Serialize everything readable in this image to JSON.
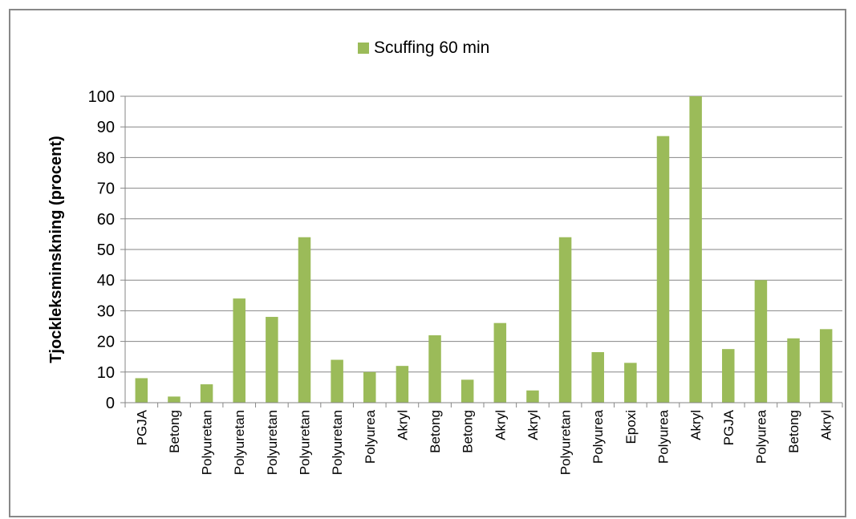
{
  "chart_data": {
    "type": "bar",
    "title": "",
    "xlabel": "",
    "ylabel": "Tjockleksminskning (procent)",
    "ylim": [
      0,
      100
    ],
    "ytick_step": 10,
    "grid": true,
    "legend_position": "top-center",
    "categories": [
      "PGJA",
      "Betong",
      "Polyuretan",
      "Polyuretan",
      "Polyuretan",
      "Polyuretan",
      "Polyuretan",
      "Polyurea",
      "Akryl",
      "Betong",
      "Betong",
      "Akryl",
      "Akryl",
      "Polyuretan",
      "Polyurea",
      "Epoxi",
      "Polyurea",
      "Akryl",
      "PGJA",
      "Polyurea",
      "Betong",
      "Akryl"
    ],
    "series": [
      {
        "name": "Scuffing 60 min",
        "color": "#9bbb59",
        "values": [
          8,
          2,
          6,
          34,
          28,
          54,
          14,
          10,
          12,
          22,
          7.5,
          26,
          4,
          54,
          16.5,
          13,
          87,
          100,
          17.5,
          40,
          21,
          24
        ]
      }
    ]
  }
}
